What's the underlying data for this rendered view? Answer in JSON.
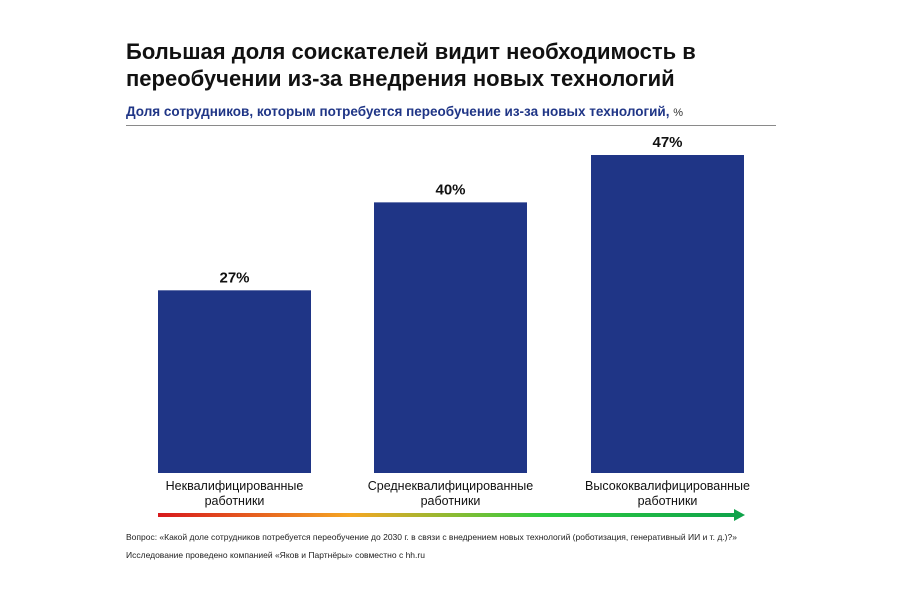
{
  "chart_data": {
    "type": "bar",
    "title": "Большая доля соискателей видит необходимость в переобучении из-за внедрения новых технологий",
    "subtitle": "Доля сотрудников, которым потребуется переобучение из-за новых технологий,",
    "unit": "%",
    "categories": [
      [
        "Неквалифицированные",
        "работники"
      ],
      [
        "Среднеквалифицированные",
        "работники"
      ],
      [
        "Высококвалифицированные",
        "работники"
      ]
    ],
    "values": [
      27,
      40,
      47
    ],
    "value_labels": [
      "27%",
      "40%",
      "47%"
    ],
    "ylim": [
      0,
      47
    ],
    "grid": false,
    "legend": "none",
    "bar_color": "#1f3586",
    "gradient_colors": [
      "#d7191c",
      "#f5a623",
      "#2ecc40",
      "#0fa34a"
    ]
  },
  "footnotes": {
    "question": "Вопрос: «Какой доле сотрудников потребуется переобучение до 2030 г. в связи с внедрением новых технологий (роботизация, генеративный ИИ и т. д.)?»",
    "source": "Исследование проведено компанией «Яков и Партнёры» совместно с hh.ru"
  }
}
